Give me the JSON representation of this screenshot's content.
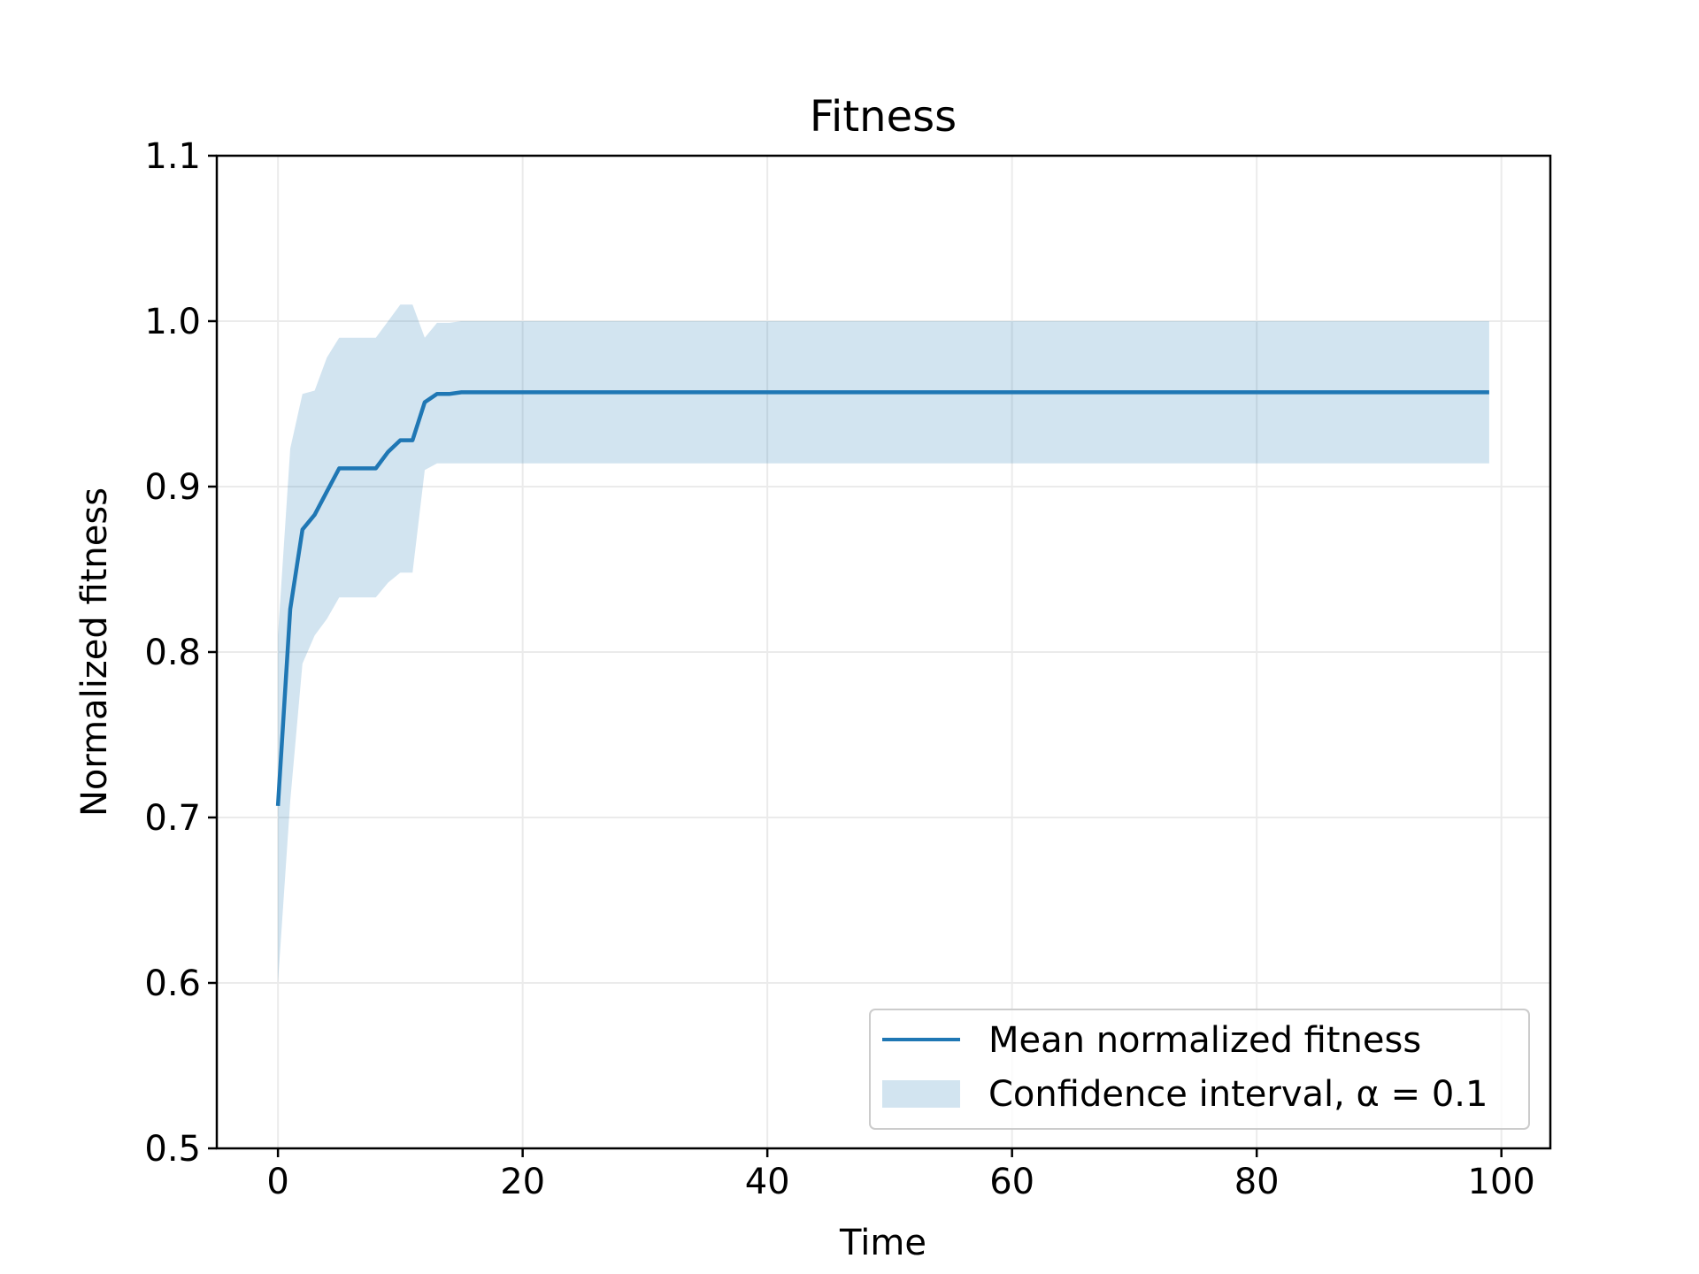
{
  "chart_data": {
    "type": "line",
    "title": "Fitness",
    "xlabel": "Time",
    "ylabel": "Normalized fitness",
    "xlim": [
      -5,
      104
    ],
    "ylim": [
      0.5,
      1.1
    ],
    "xticks": [
      0,
      20,
      40,
      60,
      80,
      100
    ],
    "xtick_labels": [
      "0",
      "20",
      "40",
      "60",
      "80",
      "100"
    ],
    "yticks": [
      0.5,
      0.6,
      0.7,
      0.8,
      0.9,
      1.0,
      1.1
    ],
    "ytick_labels": [
      "0.5",
      "0.6",
      "0.7",
      "0.8",
      "0.9",
      "1.0",
      "1.1"
    ],
    "grid": true,
    "legend_position": "lower-right",
    "series": [
      {
        "name": "Mean normalized fitness",
        "kind": "line",
        "color": "#1f77b4",
        "x": [
          0,
          1,
          2,
          3,
          4,
          5,
          6,
          7,
          8,
          9,
          10,
          11,
          12,
          13,
          14,
          15,
          99
        ],
        "y": [
          0.707,
          0.826,
          0.874,
          0.883,
          0.897,
          0.911,
          0.911,
          0.911,
          0.911,
          0.921,
          0.928,
          0.928,
          0.951,
          0.956,
          0.956,
          0.957,
          0.957
        ]
      },
      {
        "name": "Confidence interval, α = 0.1",
        "kind": "band",
        "color": "#1f77b4",
        "opacity": 0.2,
        "x": [
          0,
          1,
          2,
          3,
          4,
          5,
          6,
          7,
          8,
          9,
          10,
          11,
          12,
          13,
          14,
          15,
          99
        ],
        "lower": [
          0.6,
          0.71,
          0.793,
          0.81,
          0.82,
          0.833,
          0.833,
          0.833,
          0.833,
          0.842,
          0.848,
          0.848,
          0.91,
          0.914,
          0.914,
          0.914,
          0.914
        ],
        "upper": [
          0.81,
          0.923,
          0.956,
          0.958,
          0.978,
          0.99,
          0.99,
          0.99,
          0.99,
          1.0,
          1.01,
          1.01,
          0.99,
          0.999,
          0.999,
          1.0,
          1.0
        ]
      }
    ]
  }
}
